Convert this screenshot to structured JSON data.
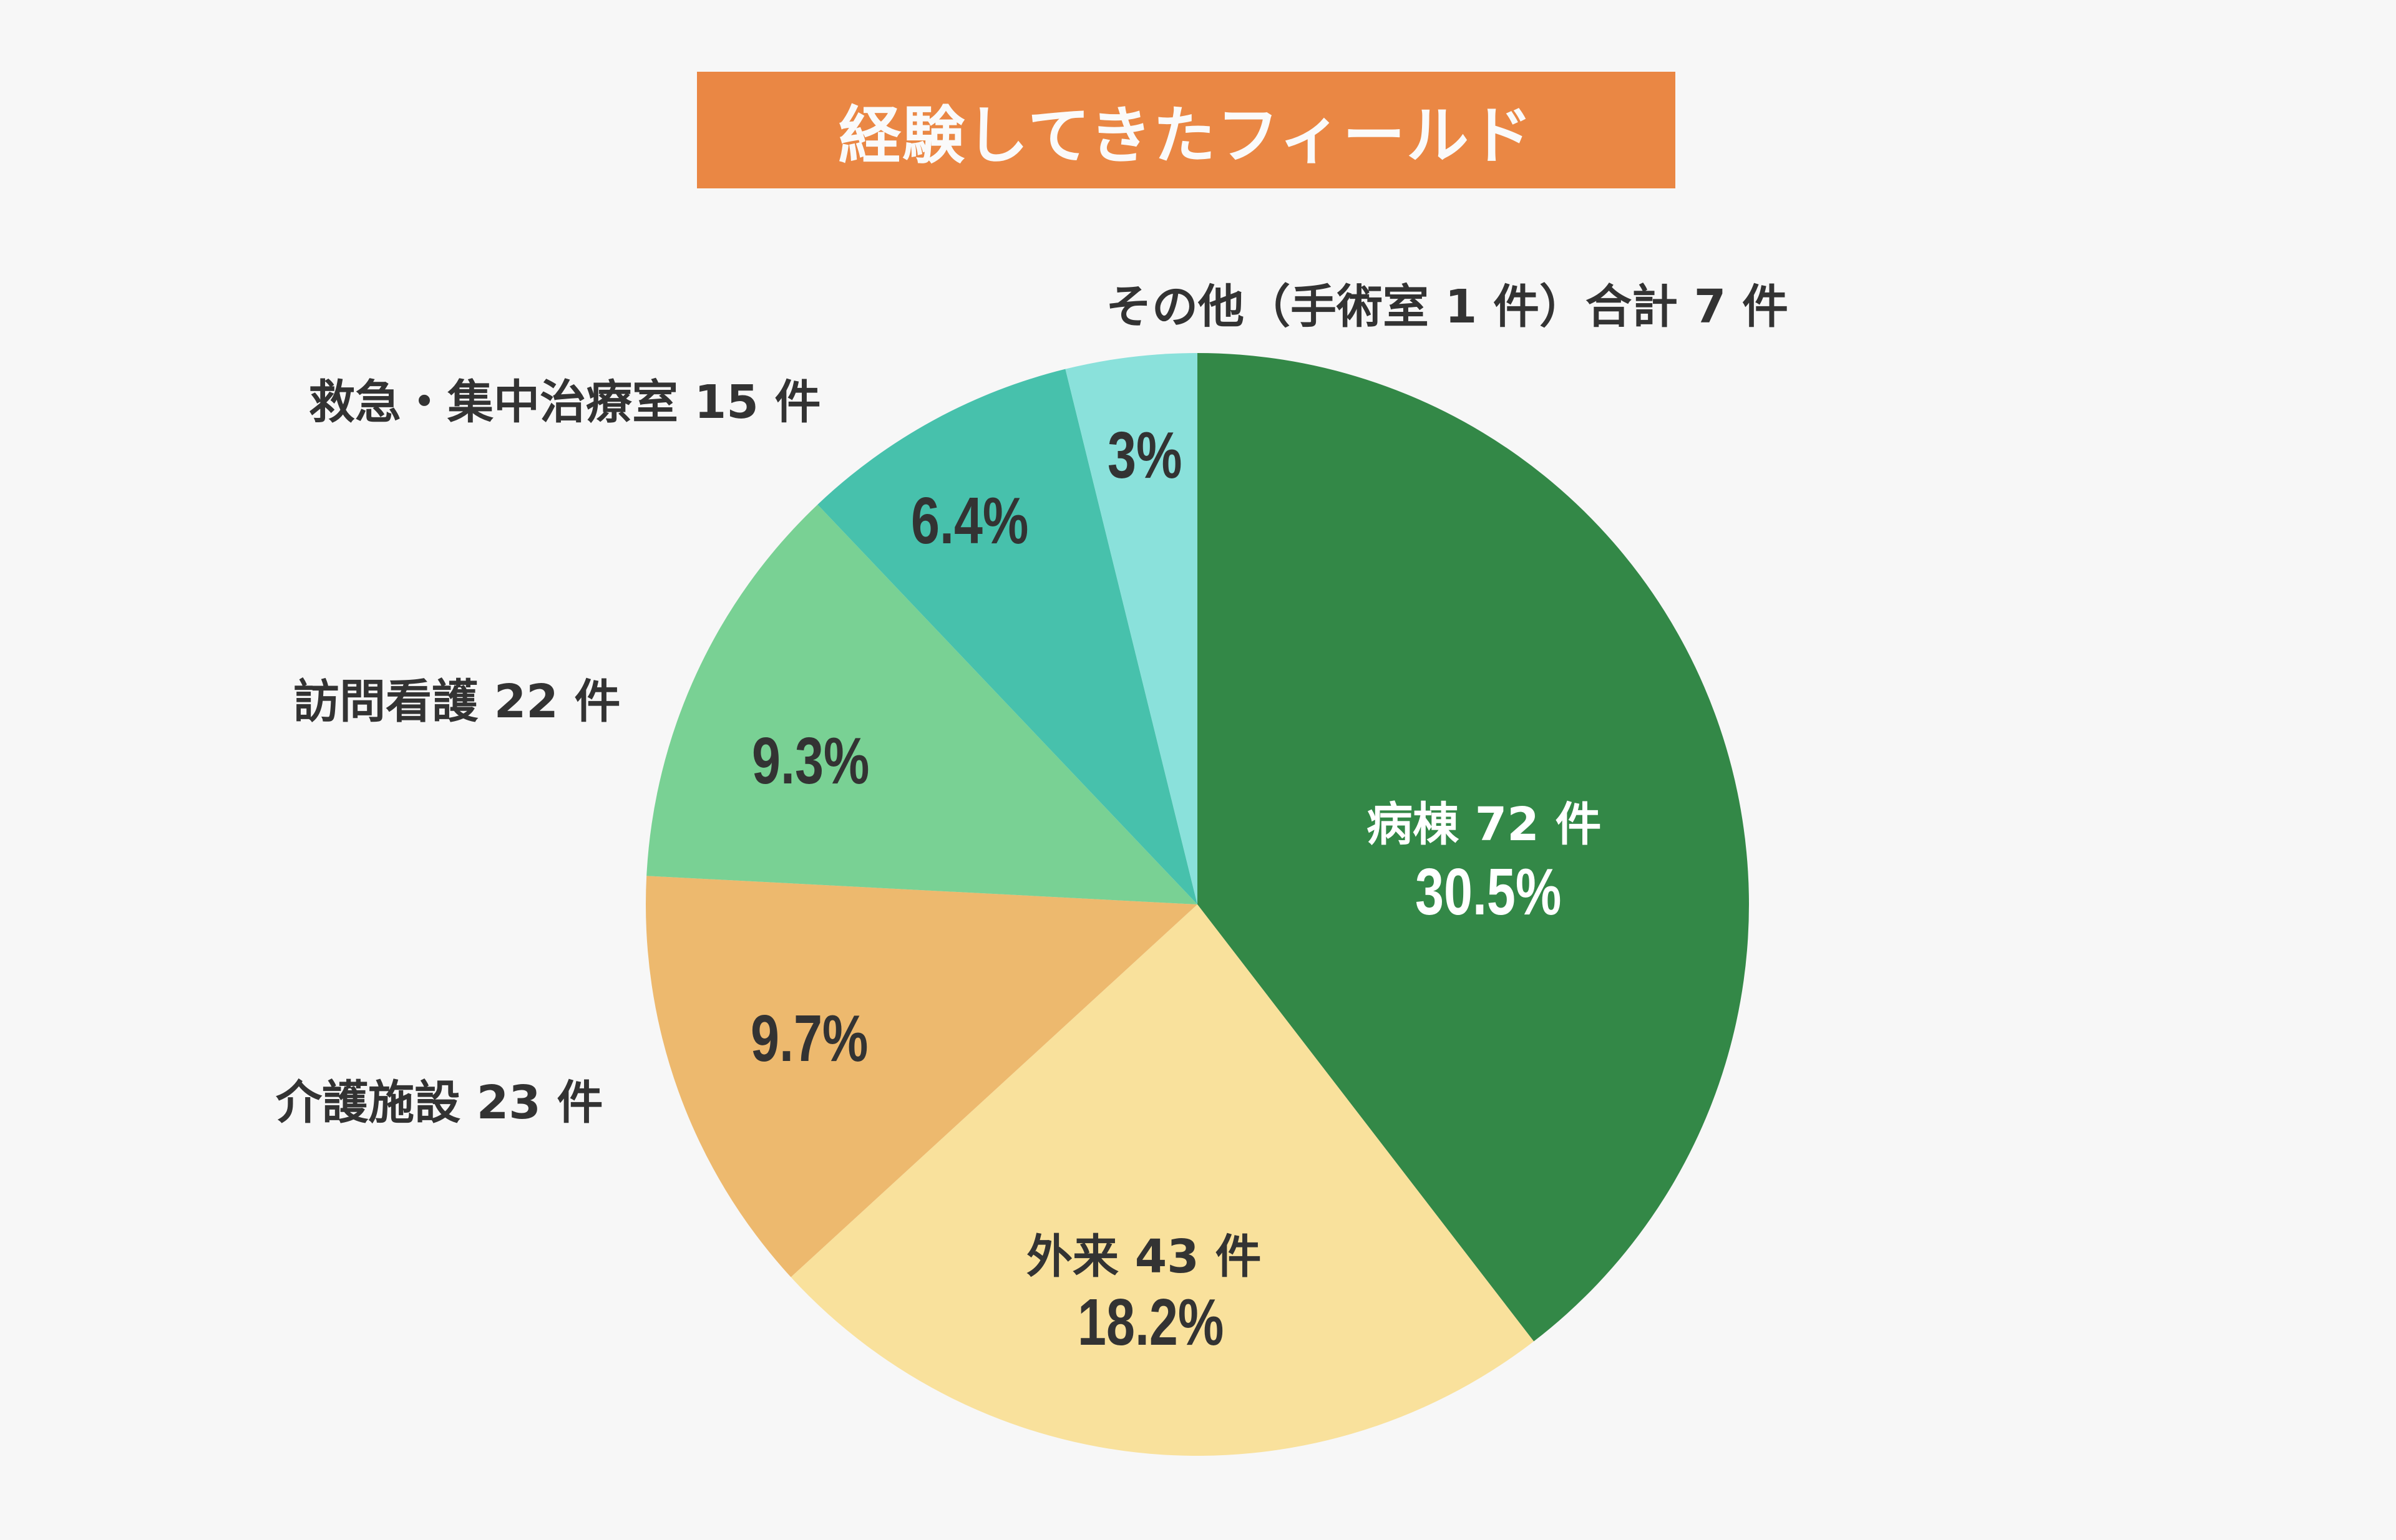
{
  "title": "経験してきたフィールド",
  "colors": {
    "title_bg": "#ea8744",
    "background": "#f7f7f7",
    "text": "#333333"
  },
  "labels": {
    "byoto": "病棟 72 件",
    "byoto_pct": "30.5%",
    "gairai": "外来 43 件",
    "gairai_pct": "18.2%",
    "kaigo": "介護施設 23 件",
    "kaigo_pct": "9.7%",
    "houmon": "訪問看護 22 件",
    "houmon_pct": "9.3%",
    "kyukyu": "救急・集中治療室 15 件",
    "kyukyu_pct": "6.4%",
    "other": "その他（手術室 1 件）合計 7 件",
    "other_pct": "3%"
  },
  "chart_data": {
    "type": "pie",
    "title": "経験してきたフィールド",
    "categories": [
      "病棟",
      "外来",
      "介護施設",
      "訪問看護",
      "救急・集中治療室",
      "その他（手術室 1 件）"
    ],
    "values": [
      72,
      43,
      23,
      22,
      15,
      7
    ],
    "units": "件",
    "percent_labels": [
      "30.5%",
      "18.2%",
      "9.7%",
      "9.3%",
      "6.4%",
      "3%"
    ],
    "colors": [
      "#338847",
      "#f9e19c",
      "#edb96e",
      "#79d194",
      "#47c1ac",
      "#8ae1db"
    ],
    "start_angle": "12 o'clock",
    "direction": "clockwise",
    "legend": "none (labels adjacent to slices)"
  }
}
